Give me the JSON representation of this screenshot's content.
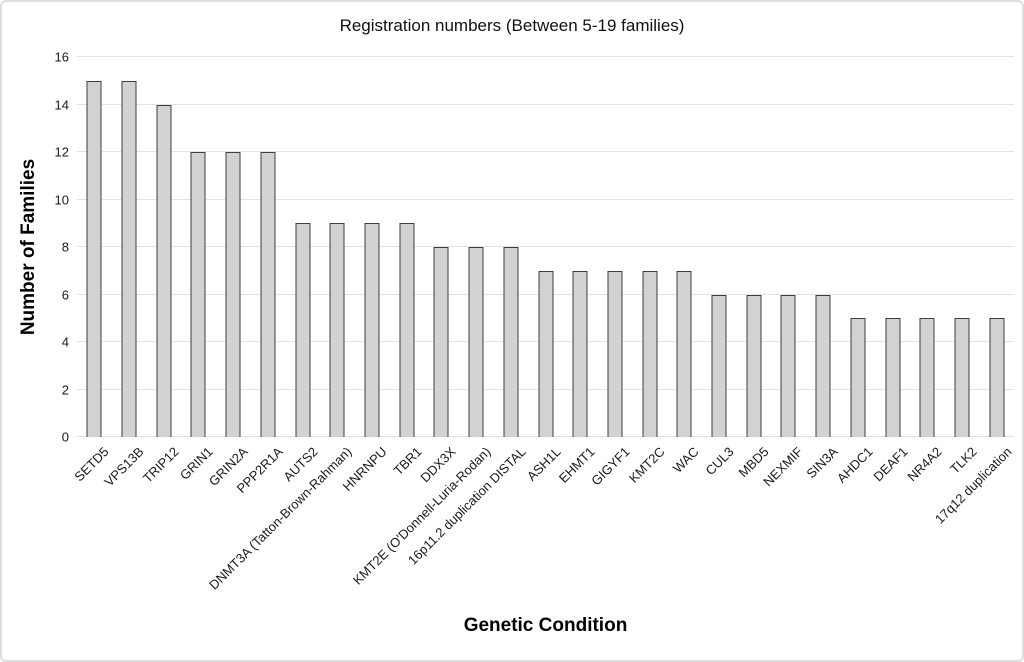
{
  "chart_data": {
    "type": "bar",
    "title": "Registration numbers (Between 5-19 families)",
    "xlabel": "Genetic Condition",
    "ylabel": "Number of Families",
    "categories": [
      "SETD5",
      "VPS13B",
      "TRIP12",
      "GRIN1",
      "GRIN2A",
      "PPP2R1A",
      "AUTS2",
      "DNMT3A (Tatton-Brown-Rahman)",
      "HNRNPU",
      "TBR1",
      "DDX3X",
      "KMT2E (O'Donnell-Luria-Rodan)",
      "16p11.2 duplication DISTAL",
      "ASH1L",
      "EHMT1",
      "GIGYF1",
      "KMT2C",
      "WAC",
      "CUL3",
      "MBD5",
      "NEXMIF",
      "SIN3A",
      "AHDC1",
      "DEAF1",
      "NR4A2",
      "TLK2",
      "17q12 duplication"
    ],
    "values": [
      15,
      15,
      14,
      12,
      12,
      12,
      9,
      9,
      9,
      9,
      8,
      8,
      8,
      7,
      7,
      7,
      7,
      7,
      6,
      6,
      6,
      6,
      5,
      5,
      5,
      5,
      5
    ],
    "ylim": [
      0,
      16
    ],
    "yticks": [
      0,
      2,
      4,
      6,
      8,
      10,
      12,
      14,
      16
    ],
    "grid": true,
    "legend": "none",
    "colors": {
      "bar_fill": "#d2d2d2",
      "bar_border": "#3d3d3d",
      "gridline": "#e3e3e3",
      "text": "#1a1a1a"
    }
  }
}
